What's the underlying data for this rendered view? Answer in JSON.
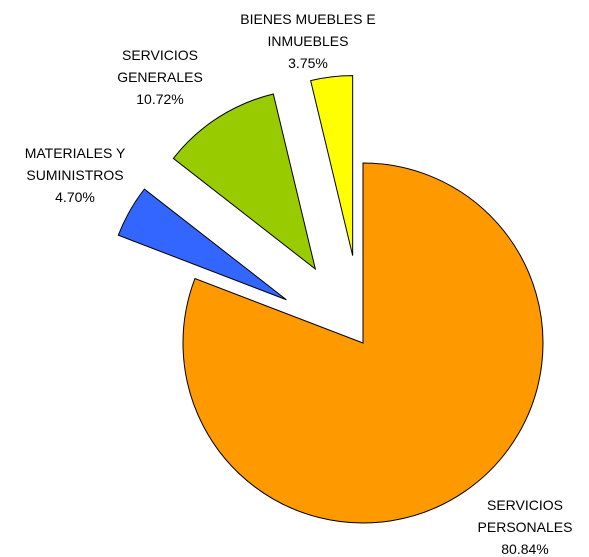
{
  "chart_data": {
    "type": "pie",
    "categories": [
      "SERVICIOS PERSONALES",
      "MATERIALES Y SUMINISTROS",
      "SERVICIOS GENERALES",
      "BIENES MUEBLES E INMUEBLES"
    ],
    "values": [
      80.84,
      4.7,
      10.72,
      3.75
    ],
    "value_labels": [
      "80.84%",
      "4.70%",
      "10.72%",
      "3.75%"
    ],
    "colors": [
      "#FF9900",
      "#3366FF",
      "#99CC00",
      "#FFFF00"
    ]
  }
}
